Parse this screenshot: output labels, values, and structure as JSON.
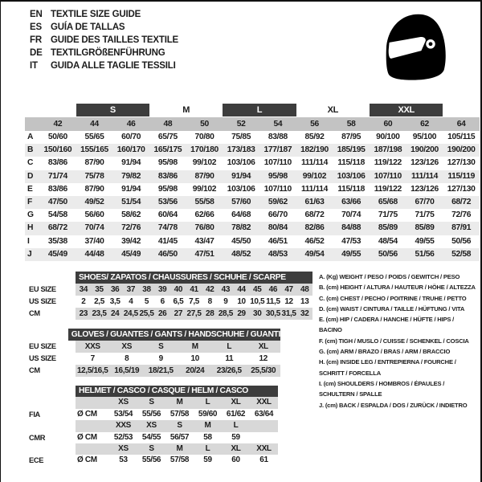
{
  "page": {
    "languages": [
      {
        "code": "EN",
        "text": "TEXTILE SIZE GUIDE"
      },
      {
        "code": "ES",
        "text": "GUÍA DE TALLAS"
      },
      {
        "code": "FR",
        "text": "GUIDE DES TAILLES TEXTILE"
      },
      {
        "code": "DE",
        "text": "TEXTILGRÖßENFÜHRUNG"
      },
      {
        "code": "IT",
        "text": "GUIDA ALLE TAGLIE TESSILI"
      }
    ],
    "colors": {
      "dark_header": "#3d3d3d",
      "size_row_gray": "#c3c3c3",
      "stripe_gray": "#ebebeb",
      "small_band_gray": "#d8d8d8"
    }
  },
  "textile_table": {
    "bands": [
      {
        "label": "S",
        "style": "dark"
      },
      {
        "label": "M",
        "style": "light"
      },
      {
        "label": "L",
        "style": "dark"
      },
      {
        "label": "XL",
        "style": "light"
      },
      {
        "label": "XXL",
        "style": "dark"
      }
    ],
    "sizes": [
      "42",
      "44",
      "46",
      "48",
      "50",
      "52",
      "54",
      "56",
      "58",
      "60",
      "62",
      "64"
    ],
    "rows": [
      {
        "label": "A",
        "values": [
          "50/60",
          "55/65",
          "60/70",
          "65/75",
          "70/80",
          "75/85",
          "83/88",
          "85/92",
          "87/95",
          "90/100",
          "95/100",
          "105/115"
        ]
      },
      {
        "label": "B",
        "values": [
          "150/160",
          "155/165",
          "160/170",
          "165/175",
          "170/180",
          "173/183",
          "177/187",
          "182/190",
          "185/195",
          "187/198",
          "190/200",
          "190/200"
        ]
      },
      {
        "label": "C",
        "values": [
          "83/86",
          "87/90",
          "91/94",
          "95/98",
          "99/102",
          "103/106",
          "107/110",
          "111/114",
          "115/118",
          "119/122",
          "123/126",
          "127/130"
        ]
      },
      {
        "label": "D",
        "values": [
          "71/74",
          "75/78",
          "79/82",
          "83/86",
          "87/90",
          "91/94",
          "95/98",
          "99/102",
          "103/106",
          "107/110",
          "111/114",
          "115/119"
        ]
      },
      {
        "label": "E",
        "values": [
          "83/86",
          "87/90",
          "91/94",
          "95/98",
          "99/102",
          "103/106",
          "107/110",
          "111/114",
          "115/118",
          "119/122",
          "123/126",
          "127/130"
        ]
      },
      {
        "label": "F",
        "values": [
          "47/50",
          "49/52",
          "51/54",
          "53/56",
          "55/58",
          "57/60",
          "59/62",
          "61/63",
          "63/66",
          "65/68",
          "67/70",
          "68/72"
        ]
      },
      {
        "label": "G",
        "values": [
          "54/58",
          "56/60",
          "58/62",
          "60/64",
          "62/66",
          "64/68",
          "66/70",
          "68/72",
          "70/74",
          "71/75",
          "71/75",
          "72/76"
        ]
      },
      {
        "label": "H",
        "values": [
          "68/72",
          "70/74",
          "72/76",
          "74/78",
          "76/80",
          "78/82",
          "80/84",
          "82/86",
          "84/88",
          "85/89",
          "85/89",
          "87/91"
        ]
      },
      {
        "label": "I",
        "values": [
          "35/38",
          "37/40",
          "39/42",
          "41/45",
          "43/47",
          "45/50",
          "46/51",
          "46/52",
          "47/53",
          "48/54",
          "49/55",
          "50/56"
        ]
      },
      {
        "label": "J",
        "values": [
          "45/49",
          "44/48",
          "45/49",
          "46/50",
          "47/51",
          "48/52",
          "48/53",
          "49/54",
          "49/55",
          "50/56",
          "51/56",
          "52/58"
        ]
      }
    ]
  },
  "shoes_table": {
    "title": "SHOES/ ZAPATOS / CHAUSSURES / SCHUHE / SCARPE",
    "rows": [
      {
        "label": "EU SIZE",
        "band": true,
        "values": [
          "34",
          "35",
          "36",
          "37",
          "38",
          "39",
          "40",
          "41",
          "42",
          "43",
          "44",
          "45",
          "46",
          "47",
          "48"
        ]
      },
      {
        "label": "US SIZE",
        "band": false,
        "values": [
          "2",
          "2,5",
          "3,5",
          "4",
          "5",
          "6",
          "6,5",
          "7,5",
          "8",
          "9",
          "10",
          "10,5",
          "11,5",
          "12",
          "13"
        ]
      },
      {
        "label": "CM",
        "band": true,
        "values": [
          "23",
          "23,5",
          "24",
          "24,5",
          "25,5",
          "26",
          "27",
          "27,5",
          "28",
          "28,5",
          "29",
          "30",
          "30,5",
          "31,5",
          "32"
        ]
      }
    ]
  },
  "gloves_table": {
    "title": "GLOVES / GUANTES / GANTS / HANDSCHUHE / GUANTI",
    "rows": [
      {
        "label": "EU SIZE",
        "band": true,
        "values": [
          "XXS",
          "XS",
          "S",
          "M",
          "L",
          "XL"
        ]
      },
      {
        "label": "US SIZE",
        "band": false,
        "values": [
          "7",
          "8",
          "9",
          "10",
          "11",
          "12"
        ]
      },
      {
        "label": "CM",
        "band": true,
        "values": [
          "12,5/16,5",
          "16,5/19",
          "18/21,5",
          "20/24",
          "23/26,5",
          "25,5/30"
        ]
      }
    ]
  },
  "helmet_table": {
    "title": "HELMET / CASCO / CASQUE / HELM / CASCO",
    "rows": [
      {
        "label": "",
        "band": true,
        "unit": "",
        "values": [
          "XS",
          "S",
          "M",
          "L",
          "XL",
          "XXL"
        ]
      },
      {
        "label": "FIA",
        "band": false,
        "unit": "Ø CM",
        "values": [
          "53/54",
          "55/56",
          "57/58",
          "59/60",
          "61/62",
          "63/64"
        ]
      },
      {
        "label": "",
        "band": true,
        "unit": "",
        "values": [
          "XXS",
          "XS",
          "S",
          "M",
          "L",
          ""
        ]
      },
      {
        "label": "CMR",
        "band": false,
        "unit": "Ø CM",
        "values": [
          "52/53",
          "54/55",
          "56/57",
          "58",
          "59",
          ""
        ]
      },
      {
        "label": "",
        "band": true,
        "unit": "",
        "values": [
          "XS",
          "S",
          "M",
          "L",
          "XL",
          "XXL"
        ]
      },
      {
        "label": "ECE",
        "band": false,
        "unit": "Ø CM",
        "values": [
          "53",
          "55/56",
          "57/58",
          "59",
          "60",
          "61"
        ]
      }
    ]
  },
  "legend": {
    "items": [
      "A. (Kg) WEIGHT / PESO / POIDS / GEWITCH / PESO",
      "B. (cm) HEIGHT / ALTURA / HAUTEUR / HÖHE / ALTEZZA",
      "C. (cm) CHEST / PECHO / POITRINE / TRUHE / PETTO",
      "D. (cm) WAIST / CINTURA / TAILLE / HÜFTUNG / VITA",
      "E. (cm) HIP / CADERA / HANCHE / HÜFTE / HIPS /  BACINO",
      "F.  (cm) TIGH / MUSLO / CUISSE / SCHENKEL / COSCIA",
      "G. (cm) ARM  / BRAZO / BRAS / ARM / BRACCIO",
      "H. (cm) INSIDE LEG / ENTREPIERNA / FOURCHE / SCHRITT / FORCELLA",
      "I.  (cm) SHOULDERS / HOMBROS / ÉPAULES / SCHULTERN / SPALLE",
      "J. (cm) BACK / ESPALDA / DOS / ZURÜCK / INDIETRO"
    ]
  }
}
